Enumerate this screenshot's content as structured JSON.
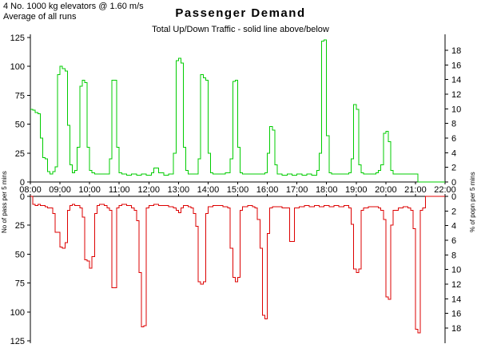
{
  "header": {
    "line1": "4 No. 1000 kg elevators @ 1.60 m/s",
    "line2": "Average of all runs"
  },
  "title": "Passenger Demand",
  "subtitle": "Total Up/Down Traffic - solid line above/below",
  "axes": {
    "left_title": "No of pass per 5 mins",
    "right_title": "% of popn per 5 mins",
    "left_ticks": [
      0,
      25,
      50,
      75,
      100,
      125
    ],
    "right_ticks": [
      0,
      2,
      4,
      6,
      8,
      10,
      12,
      14,
      16,
      18
    ],
    "x_labels": [
      "08:00",
      "09:00",
      "10:00",
      "11:00",
      "12:00",
      "13:00",
      "14:00",
      "15:00",
      "16:00",
      "17:00",
      "18:00",
      "19:00",
      "20:00",
      "21:00",
      "22:00"
    ]
  },
  "colors": {
    "up": "#00cc00",
    "down": "#dd0000",
    "axis": "#000000",
    "background": "#ffffff"
  },
  "chart_data": {
    "type": "line",
    "title": "Passenger Demand",
    "subtitle": "Total Up/Down Traffic - solid line above/below",
    "x_unit": "minutes after 08:00, 5-minute steps",
    "x_range": [
      0,
      840
    ],
    "x_tick_labels": [
      "08:00",
      "09:00",
      "10:00",
      "11:00",
      "12:00",
      "13:00",
      "14:00",
      "15:00",
      "16:00",
      "17:00",
      "18:00",
      "19:00",
      "20:00",
      "21:00",
      "22:00"
    ],
    "left_axis": {
      "label": "No of pass per 5 mins",
      "range": [
        0,
        125
      ],
      "ticks": [
        0,
        25,
        50,
        75,
        100,
        125
      ]
    },
    "right_axis": {
      "label": "% of popn per 5 mins",
      "ticks": [
        0,
        2,
        4,
        6,
        8,
        10,
        12,
        14,
        16,
        18
      ],
      "people_per_percent": 6.33
    },
    "grid": false,
    "legend": "none",
    "series": [
      {
        "name": "Up traffic",
        "direction": "up",
        "color": "#00cc00",
        "step_points": [
          [
            0,
            63
          ],
          [
            5,
            62
          ],
          [
            10,
            60
          ],
          [
            15,
            59
          ],
          [
            20,
            38
          ],
          [
            25,
            21
          ],
          [
            30,
            20
          ],
          [
            35,
            9
          ],
          [
            40,
            7
          ],
          [
            45,
            9
          ],
          [
            50,
            13
          ],
          [
            55,
            93
          ],
          [
            60,
            100
          ],
          [
            65,
            98
          ],
          [
            70,
            96
          ],
          [
            75,
            49
          ],
          [
            80,
            15
          ],
          [
            85,
            8
          ],
          [
            90,
            10
          ],
          [
            95,
            30
          ],
          [
            100,
            83
          ],
          [
            105,
            88
          ],
          [
            110,
            86
          ],
          [
            115,
            30
          ],
          [
            120,
            10
          ],
          [
            125,
            8
          ],
          [
            130,
            7
          ],
          [
            160,
            20
          ],
          [
            165,
            88
          ],
          [
            170,
            88
          ],
          [
            175,
            30
          ],
          [
            180,
            8
          ],
          [
            185,
            7
          ],
          [
            195,
            6
          ],
          [
            205,
            7
          ],
          [
            215,
            6
          ],
          [
            225,
            7
          ],
          [
            235,
            6
          ],
          [
            245,
            8
          ],
          [
            250,
            12
          ],
          [
            255,
            12
          ],
          [
            260,
            8
          ],
          [
            270,
            6
          ],
          [
            280,
            7
          ],
          [
            290,
            25
          ],
          [
            295,
            105
          ],
          [
            300,
            107
          ],
          [
            305,
            103
          ],
          [
            310,
            30
          ],
          [
            315,
            10
          ],
          [
            320,
            7
          ],
          [
            340,
            20
          ],
          [
            345,
            93
          ],
          [
            350,
            90
          ],
          [
            355,
            88
          ],
          [
            360,
            25
          ],
          [
            365,
            8
          ],
          [
            370,
            7
          ],
          [
            395,
            8
          ],
          [
            405,
            20
          ],
          [
            410,
            87
          ],
          [
            415,
            88
          ],
          [
            420,
            30
          ],
          [
            425,
            8
          ],
          [
            430,
            7
          ],
          [
            475,
            8
          ],
          [
            480,
            25
          ],
          [
            485,
            48
          ],
          [
            490,
            45
          ],
          [
            495,
            15
          ],
          [
            500,
            7
          ],
          [
            510,
            6
          ],
          [
            520,
            7
          ],
          [
            530,
            6
          ],
          [
            540,
            7
          ],
          [
            550,
            6
          ],
          [
            560,
            7
          ],
          [
            570,
            6
          ],
          [
            580,
            10
          ],
          [
            585,
            25
          ],
          [
            590,
            122
          ],
          [
            595,
            123
          ],
          [
            600,
            40
          ],
          [
            605,
            8
          ],
          [
            610,
            7
          ],
          [
            645,
            8
          ],
          [
            650,
            20
          ],
          [
            655,
            67
          ],
          [
            660,
            63
          ],
          [
            665,
            15
          ],
          [
            670,
            8
          ],
          [
            675,
            7
          ],
          [
            700,
            8
          ],
          [
            705,
            10
          ],
          [
            710,
            15
          ],
          [
            715,
            42
          ],
          [
            720,
            44
          ],
          [
            725,
            35
          ],
          [
            730,
            10
          ],
          [
            735,
            7
          ],
          [
            785,
            0
          ],
          [
            840,
            0
          ]
        ]
      },
      {
        "name": "Down traffic",
        "direction": "down",
        "color": "#dd0000",
        "step_points": [
          [
            0,
            0
          ],
          [
            5,
            7
          ],
          [
            10,
            8
          ],
          [
            15,
            7
          ],
          [
            20,
            8
          ],
          [
            25,
            8
          ],
          [
            30,
            9
          ],
          [
            35,
            10
          ],
          [
            40,
            10
          ],
          [
            45,
            15
          ],
          [
            50,
            31
          ],
          [
            55,
            31
          ],
          [
            60,
            44
          ],
          [
            65,
            45
          ],
          [
            70,
            40
          ],
          [
            75,
            12
          ],
          [
            80,
            8
          ],
          [
            85,
            7
          ],
          [
            90,
            8
          ],
          [
            100,
            10
          ],
          [
            105,
            18
          ],
          [
            110,
            55
          ],
          [
            115,
            56
          ],
          [
            120,
            62
          ],
          [
            125,
            52
          ],
          [
            130,
            15
          ],
          [
            135,
            8
          ],
          [
            140,
            7
          ],
          [
            150,
            8
          ],
          [
            155,
            10
          ],
          [
            160,
            12
          ],
          [
            165,
            79
          ],
          [
            170,
            79
          ],
          [
            175,
            10
          ],
          [
            180,
            8
          ],
          [
            185,
            7
          ],
          [
            195,
            8
          ],
          [
            205,
            10
          ],
          [
            210,
            12
          ],
          [
            215,
            21
          ],
          [
            220,
            66
          ],
          [
            225,
            113
          ],
          [
            230,
            112
          ],
          [
            235,
            10
          ],
          [
            240,
            8
          ],
          [
            250,
            7
          ],
          [
            260,
            8
          ],
          [
            270,
            8
          ],
          [
            280,
            9
          ],
          [
            290,
            10
          ],
          [
            295,
            12
          ],
          [
            300,
            14
          ],
          [
            305,
            10
          ],
          [
            310,
            8
          ],
          [
            320,
            9
          ],
          [
            325,
            10
          ],
          [
            330,
            15
          ],
          [
            335,
            26
          ],
          [
            340,
            74
          ],
          [
            345,
            76
          ],
          [
            350,
            74
          ],
          [
            355,
            15
          ],
          [
            360,
            9
          ],
          [
            370,
            8
          ],
          [
            380,
            8
          ],
          [
            390,
            9
          ],
          [
            400,
            10
          ],
          [
            405,
            45
          ],
          [
            410,
            70
          ],
          [
            415,
            74
          ],
          [
            420,
            70
          ],
          [
            425,
            12
          ],
          [
            430,
            9
          ],
          [
            440,
            8
          ],
          [
            450,
            9
          ],
          [
            455,
            10
          ],
          [
            460,
            20
          ],
          [
            465,
            45
          ],
          [
            470,
            103
          ],
          [
            475,
            106
          ],
          [
            480,
            32
          ],
          [
            485,
            10
          ],
          [
            490,
            9
          ],
          [
            500,
            9
          ],
          [
            510,
            10
          ],
          [
            520,
            10
          ],
          [
            525,
            39
          ],
          [
            530,
            39
          ],
          [
            535,
            10
          ],
          [
            545,
            9
          ],
          [
            555,
            8
          ],
          [
            565,
            9
          ],
          [
            575,
            8
          ],
          [
            585,
            9
          ],
          [
            595,
            8
          ],
          [
            605,
            9
          ],
          [
            615,
            8
          ],
          [
            625,
            9
          ],
          [
            635,
            8
          ],
          [
            645,
            10
          ],
          [
            650,
            24
          ],
          [
            655,
            63
          ],
          [
            660,
            66
          ],
          [
            665,
            63
          ],
          [
            670,
            12
          ],
          [
            675,
            10
          ],
          [
            685,
            9
          ],
          [
            695,
            9
          ],
          [
            705,
            10
          ],
          [
            710,
            12
          ],
          [
            715,
            20
          ],
          [
            720,
            87
          ],
          [
            725,
            89
          ],
          [
            730,
            25
          ],
          [
            735,
            12
          ],
          [
            745,
            10
          ],
          [
            755,
            9
          ],
          [
            765,
            10
          ],
          [
            770,
            12
          ],
          [
            775,
            28
          ],
          [
            780,
            115
          ],
          [
            785,
            118
          ],
          [
            790,
            12
          ],
          [
            795,
            10
          ],
          [
            800,
            0
          ],
          [
            840,
            0
          ]
        ]
      }
    ]
  }
}
